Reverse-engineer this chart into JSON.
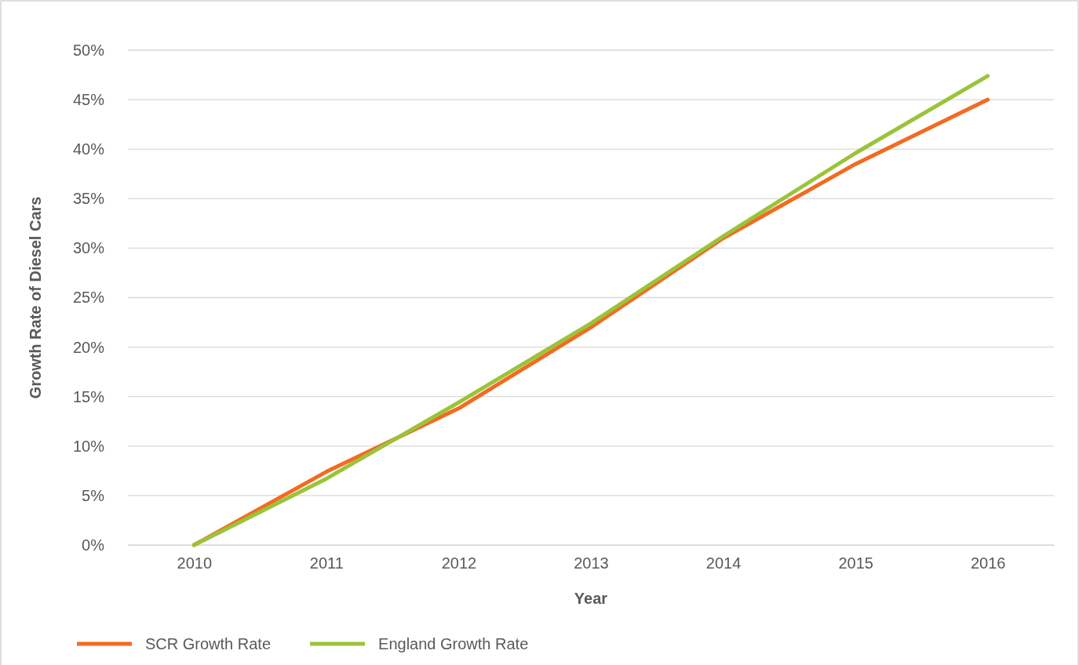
{
  "chart_data": {
    "type": "line",
    "xlabel": "Year",
    "ylabel": "Growth Rate of Diesel Cars",
    "categories": [
      "2010",
      "2011",
      "2012",
      "2013",
      "2014",
      "2015",
      "2016"
    ],
    "series": [
      {
        "name": "SCR Growth Rate",
        "color": "#f26b21",
        "values": [
          0,
          7.4,
          13.8,
          22.0,
          31.0,
          38.5,
          45.0
        ]
      },
      {
        "name": "England Growth Rate",
        "color": "#9bc33a",
        "values": [
          0,
          6.7,
          14.4,
          22.4,
          31.2,
          39.6,
          47.4
        ]
      }
    ],
    "ylim": [
      0,
      50
    ],
    "yticks": [
      {
        "value": 0,
        "label": "0%"
      },
      {
        "value": 5,
        "label": "5%"
      },
      {
        "value": 10,
        "label": "10%"
      },
      {
        "value": 15,
        "label": "15%"
      },
      {
        "value": 20,
        "label": "20%"
      },
      {
        "value": 25,
        "label": "25%"
      },
      {
        "value": 30,
        "label": "30%"
      },
      {
        "value": 35,
        "label": "35%"
      },
      {
        "value": 40,
        "label": "40%"
      },
      {
        "value": 45,
        "label": "45%"
      },
      {
        "value": 50,
        "label": "50%"
      }
    ],
    "grid": "y",
    "legend": "bottom left",
    "marker": "none",
    "line_style": "solid"
  }
}
